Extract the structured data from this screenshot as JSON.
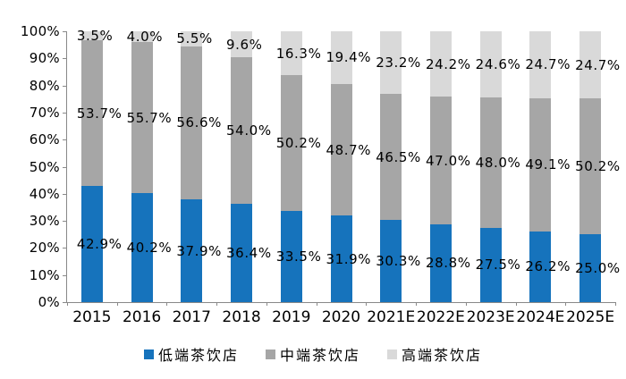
{
  "chart_data": {
    "type": "bar",
    "stacked": true,
    "percent_stacked": true,
    "title": "",
    "xlabel": "",
    "ylabel": "",
    "categories": [
      "2015",
      "2016",
      "2017",
      "2018",
      "2019",
      "2020",
      "2021E",
      "2022E",
      "2023E",
      "2024E",
      "2025E"
    ],
    "series": [
      {
        "name": "低端茶饮店",
        "color": "#1673BC",
        "values": [
          42.9,
          40.2,
          37.9,
          36.4,
          33.5,
          31.9,
          30.3,
          28.8,
          27.5,
          26.2,
          25.0
        ]
      },
      {
        "name": "中端茶饮店",
        "color": "#A6A6A6",
        "values": [
          53.7,
          55.7,
          56.6,
          54.0,
          50.2,
          48.7,
          46.5,
          47.0,
          48.0,
          49.1,
          50.2
        ]
      },
      {
        "name": "高端茶饮店",
        "color": "#D9D9D9",
        "values": [
          3.5,
          4.0,
          5.5,
          9.6,
          16.3,
          19.4,
          23.2,
          24.2,
          24.6,
          24.7,
          24.7
        ]
      }
    ],
    "value_label_suffix": "%",
    "value_label_decimals": 1,
    "y_axis": {
      "min": 0,
      "max": 100,
      "step": 10,
      "tick_labels": [
        "0%",
        "10%",
        "20%",
        "30%",
        "40%",
        "50%",
        "60%",
        "70%",
        "80%",
        "90%",
        "100%"
      ]
    },
    "grid": false,
    "legend_position": "bottom",
    "colors": {
      "axis": "#898989",
      "text": "#000000",
      "background": "#FFFFFF"
    }
  }
}
